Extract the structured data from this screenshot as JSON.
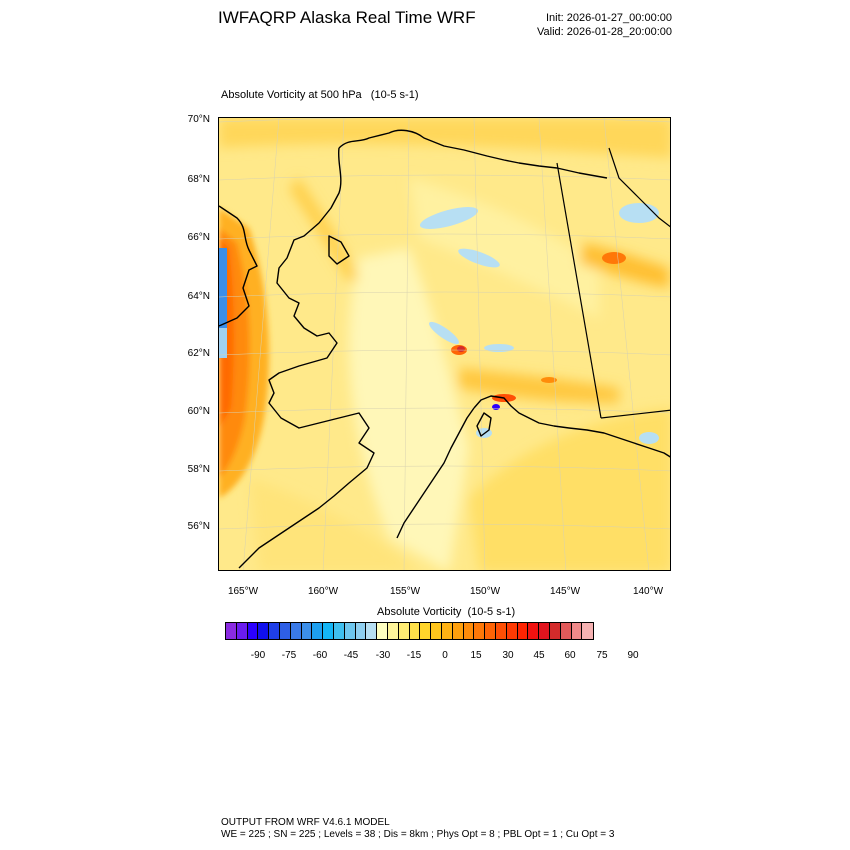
{
  "header": {
    "title": "IWFAQRP Alaska Real Time WRF",
    "init": "Init: 2026-01-27_00:00:00",
    "valid": "Valid: 2026-01-28_20:00:00"
  },
  "field_title": "Absolute Vorticity at 500 hPa   (10-5 s-1)",
  "lat_labels": [
    "70°N",
    "68°N",
    "66°N",
    "64°N",
    "62°N",
    "60°N",
    "58°N",
    "56°N"
  ],
  "lon_labels": [
    "165°W",
    "160°W",
    "155°W",
    "150°W",
    "145°W",
    "140°W"
  ],
  "colorbar": {
    "title": "Absolute Vorticity  (10-5 s-1)",
    "labels": [
      "-90",
      "-75",
      "-60",
      "-45",
      "-30",
      "-15",
      "0",
      "15",
      "30",
      "45",
      "60",
      "75",
      "90"
    ],
    "colors": [
      "#8a2be2",
      "#6a1cf0",
      "#2b00ff",
      "#1010ee",
      "#1f3fe8",
      "#2e5fe6",
      "#3a7ae8",
      "#3c8fea",
      "#1ea0f0",
      "#14b5f5",
      "#3fbfef",
      "#6ec6ee",
      "#8fcff0",
      "#b7dff3",
      "#ffffc0",
      "#fff59a",
      "#ffec73",
      "#ffe14a",
      "#ffd52b",
      "#ffc51c",
      "#ffb214",
      "#ffa00d",
      "#ff8c0a",
      "#ff7808",
      "#ff6406",
      "#ff4f05",
      "#ff3a03",
      "#ff2402",
      "#f21210",
      "#e0141e",
      "#d32b2b",
      "#e25a5a",
      "#f08a8a",
      "#f6b2b2"
    ]
  },
  "footer": {
    "line1": "OUTPUT FROM WRF V4.6.1 MODEL",
    "line2": "WE = 225 ; SN = 225 ; Levels = 38 ; Dis = 8km ; Phys Opt = 8 ; PBL Opt = 1 ; Cu Opt = 3"
  }
}
